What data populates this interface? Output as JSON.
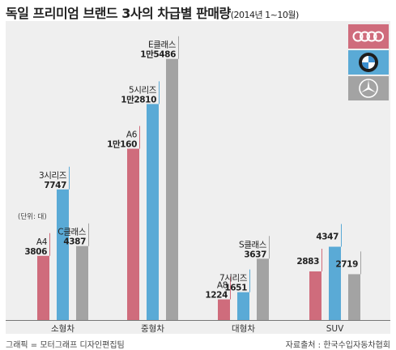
{
  "title": {
    "main": "독일 프리미엄 브랜드 3사의 차급별 판매량",
    "sub": "(2014년 1~10월)"
  },
  "footer": {
    "credit": "그래픽 = 모터그래프 디자인편집팀",
    "source": "자료출처 : 한국수입자동차협회"
  },
  "colors": {
    "audi": "#cf6c7c",
    "bmw": "#5aaad6",
    "benz": "#a3a3a3",
    "panel": "#efefef",
    "axis": "#777777"
  },
  "chart_data": {
    "type": "bar",
    "categories": [
      "소형차",
      "중형차",
      "대형차",
      "SUV"
    ],
    "unit_note": "(단위: 대)",
    "ylim": [
      0,
      16000
    ],
    "grid": false,
    "legend_placement": "top-right",
    "legend": [
      {
        "icon": "audi-logo-icon"
      },
      {
        "icon": "bmw-logo-icon"
      },
      {
        "icon": "mercedes-logo-icon"
      }
    ],
    "series": [
      {
        "brand_icon": "audi-logo-icon",
        "values": [
          3806,
          10160,
          1224,
          2883
        ],
        "model_labels": [
          "A4",
          "A6",
          "A8",
          ""
        ],
        "value_labels": [
          "3806",
          "1만160",
          "1224",
          "2883"
        ]
      },
      {
        "brand_icon": "bmw-logo-icon",
        "values": [
          7747,
          12810,
          1651,
          4347
        ],
        "model_labels": [
          "3시리즈",
          "5시리즈",
          "7시리즈",
          ""
        ],
        "value_labels": [
          "7747",
          "1만2810",
          "1651",
          "4347"
        ]
      },
      {
        "brand_icon": "mercedes-logo-icon",
        "values": [
          4387,
          15486,
          3637,
          2719
        ],
        "model_labels": [
          "C클래스",
          "E클래스",
          "S클래스",
          ""
        ],
        "value_labels": [
          "4387",
          "1만5486",
          "3637",
          "2719"
        ]
      }
    ]
  }
}
